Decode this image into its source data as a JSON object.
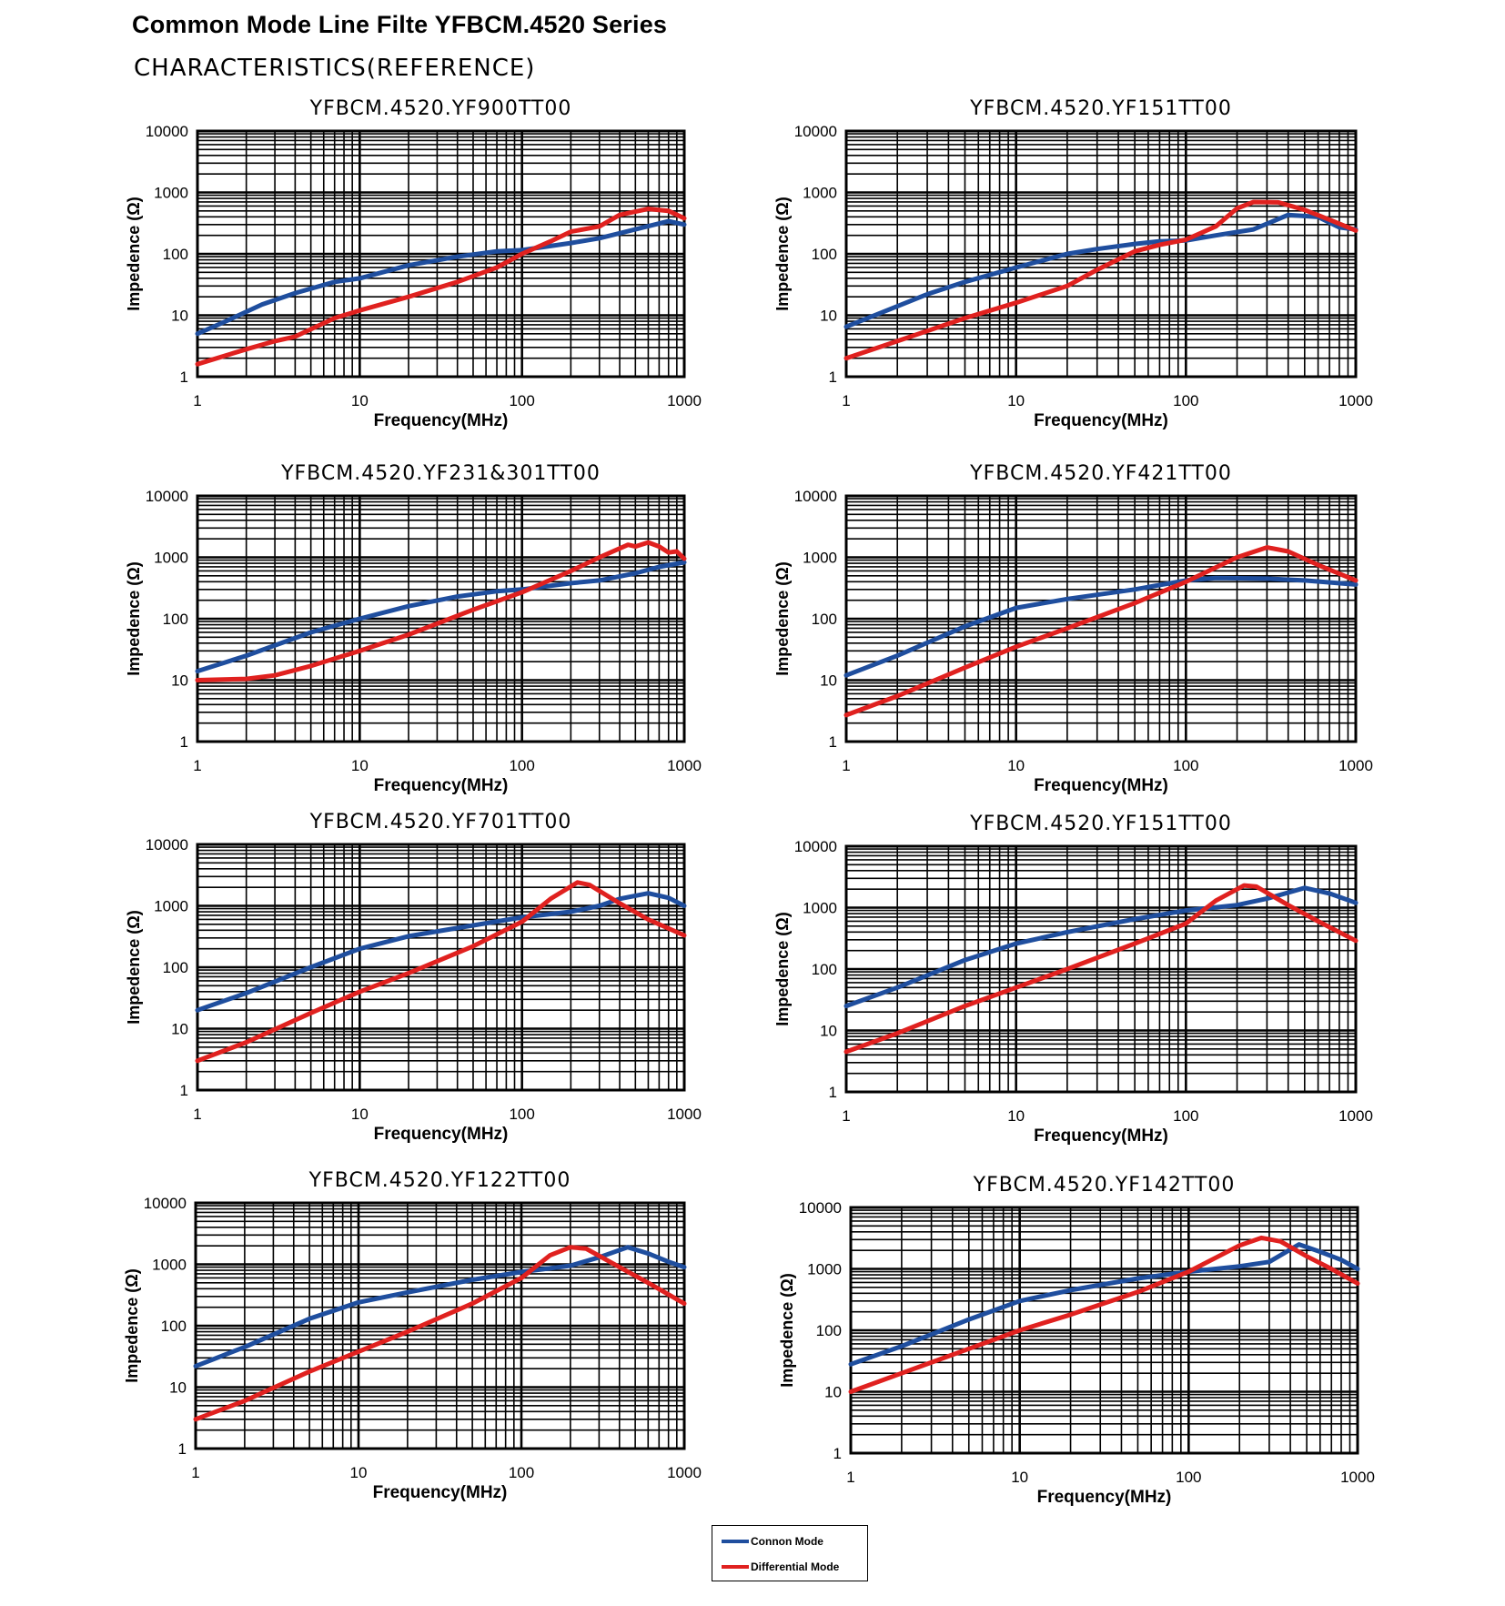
{
  "title": "Common Mode Line Filte YFBCM.4520 Series",
  "subtitle": "CHARACTERISTICS(REFERENCE)",
  "colors": {
    "common_mode": "#1f4e9e",
    "differential_mode": "#e0211f",
    "grid": "#000000"
  },
  "legend": {
    "items": [
      {
        "label": "Connon Mode",
        "color": "#1f4e9e"
      },
      {
        "label": "Differential Mode",
        "color": "#e0211f"
      }
    ]
  },
  "chart_data": [
    {
      "type": "line",
      "title": "YFBCM.4520.YF900TT00",
      "xlabel": "Frequency(MHz)",
      "ylabel": "Impedence (Ω)",
      "x_scale": "log",
      "y_scale": "log",
      "xlim": [
        1,
        1000
      ],
      "ylim": [
        1,
        10000
      ],
      "xticks": [
        "1",
        "10",
        "100",
        "1000"
      ],
      "yticks": [
        "1",
        "10",
        "100",
        "1000",
        "10000"
      ],
      "grid": true,
      "series": [
        {
          "x": [
            1,
            1.5,
            2.5,
            4,
            7,
            10,
            20,
            40,
            70,
            100,
            200,
            300,
            500,
            800,
            1000
          ],
          "y": [
            5,
            8,
            15,
            23,
            35,
            40,
            65,
            90,
            110,
            115,
            150,
            180,
            250,
            340,
            300
          ]
        },
        {
          "x": [
            1,
            2,
            3,
            4,
            7,
            10,
            20,
            40,
            70,
            100,
            150,
            200,
            300,
            400,
            600,
            800,
            1000
          ],
          "y": [
            1.6,
            2.8,
            3.8,
            4.5,
            9,
            12,
            20,
            35,
            60,
            100,
            160,
            230,
            280,
            430,
            540,
            500,
            380
          ]
        }
      ]
    },
    {
      "type": "line",
      "title": "YFBCM.4520.YF151TT00",
      "xlabel": "Frequency(MHz)",
      "ylabel": "Impedence (Ω)",
      "x_scale": "log",
      "y_scale": "log",
      "xlim": [
        1,
        1000
      ],
      "ylim": [
        1,
        10000
      ],
      "xticks": [
        "1",
        "10",
        "100",
        "1000"
      ],
      "yticks": [
        "1",
        "10",
        "100",
        "1000",
        "10000"
      ],
      "grid": true,
      "series": [
        {
          "x": [
            1,
            2,
            3,
            5,
            10,
            20,
            30,
            50,
            70,
            100,
            150,
            250,
            400,
            600,
            800,
            1000
          ],
          "y": [
            6.5,
            14,
            22,
            35,
            60,
            100,
            120,
            145,
            160,
            165,
            200,
            250,
            430,
            400,
            270,
            250
          ]
        },
        {
          "x": [
            1,
            2,
            5,
            10,
            20,
            30,
            50,
            70,
            100,
            150,
            200,
            250,
            350,
            500,
            700,
            1000
          ],
          "y": [
            2,
            3.8,
            9,
            16,
            30,
            55,
            110,
            140,
            170,
            280,
            550,
            700,
            690,
            520,
            360,
            240
          ]
        }
      ]
    },
    {
      "type": "line",
      "title": "YFBCM.4520.YF231&301TT00",
      "xlabel": "Frequency(MHz)",
      "ylabel": "Impedence (Ω)",
      "x_scale": "log",
      "y_scale": "log",
      "xlim": [
        1,
        1000
      ],
      "ylim": [
        1,
        10000
      ],
      "xticks": [
        "1",
        "10",
        "100",
        "1000"
      ],
      "yticks": [
        "1",
        "10",
        "100",
        "1000",
        "10000"
      ],
      "grid": true,
      "series": [
        {
          "x": [
            1,
            2,
            5,
            10,
            20,
            40,
            70,
            100,
            200,
            300,
            500,
            700,
            1000
          ],
          "y": [
            14,
            25,
            60,
            100,
            160,
            230,
            280,
            300,
            380,
            420,
            550,
            700,
            830
          ]
        },
        {
          "x": [
            1,
            2,
            3,
            5,
            10,
            20,
            50,
            100,
            200,
            300,
            450,
            500,
            600,
            700,
            800,
            900,
            1000
          ],
          "y": [
            10,
            10.5,
            12,
            17,
            30,
            55,
            140,
            270,
            600,
            1000,
            1600,
            1500,
            1750,
            1500,
            1200,
            1250,
            950
          ]
        }
      ]
    },
    {
      "type": "line",
      "title": "YFBCM.4520.YF421TT00",
      "xlabel": "Frequency(MHz)",
      "ylabel": "Impedence (Ω)",
      "x_scale": "log",
      "y_scale": "log",
      "xlim": [
        1,
        1000
      ],
      "ylim": [
        1,
        10000
      ],
      "xticks": [
        "1",
        "10",
        "100",
        "1000"
      ],
      "yticks": [
        "1",
        "10",
        "100",
        "1000",
        "10000"
      ],
      "grid": true,
      "series": [
        {
          "x": [
            1,
            2,
            5,
            10,
            20,
            50,
            100,
            150,
            300,
            500,
            1000
          ],
          "y": [
            12,
            25,
            75,
            150,
            210,
            300,
            420,
            460,
            450,
            420,
            360
          ]
        },
        {
          "x": [
            1,
            2,
            5,
            10,
            20,
            50,
            100,
            200,
            300,
            400,
            600,
            1000
          ],
          "y": [
            2.7,
            5.5,
            16,
            35,
            70,
            180,
            400,
            1000,
            1450,
            1250,
            750,
            420
          ]
        }
      ]
    },
    {
      "type": "line",
      "title": "YFBCM.4520.YF701TT00",
      "xlabel": "Frequency(MHz)",
      "ylabel": "Impedence (Ω)",
      "x_scale": "log",
      "y_scale": "log",
      "xlim": [
        1,
        1000
      ],
      "ylim": [
        1,
        10000
      ],
      "xticks": [
        "1",
        "10",
        "100",
        "1000"
      ],
      "yticks": [
        "1",
        "10",
        "100",
        "1000",
        "10000"
      ],
      "grid": true,
      "series": [
        {
          "x": [
            1,
            2,
            5,
            10,
            20,
            50,
            100,
            200,
            300,
            400,
            600,
            800,
            1000
          ],
          "y": [
            20,
            38,
            100,
            200,
            320,
            480,
            650,
            800,
            1000,
            1300,
            1600,
            1350,
            1000
          ]
        },
        {
          "x": [
            1,
            2,
            5,
            10,
            20,
            50,
            100,
            150,
            220,
            260,
            400,
            600,
            1000
          ],
          "y": [
            3,
            6,
            18,
            40,
            80,
            220,
            550,
            1300,
            2400,
            2200,
            1100,
            600,
            330
          ]
        }
      ]
    },
    {
      "type": "line",
      "title": "YFBCM.4520.YF151TT00",
      "xlabel": "Frequency(MHz)",
      "ylabel": "Impedence (Ω)",
      "x_scale": "log",
      "y_scale": "log",
      "xlim": [
        1,
        1000
      ],
      "ylim": [
        1,
        10000
      ],
      "xticks": [
        "1",
        "10",
        "100",
        "1000"
      ],
      "yticks": [
        "1",
        "10",
        "100",
        "1000",
        "10000"
      ],
      "grid": true,
      "series": [
        {
          "x": [
            1,
            2,
            5,
            10,
            20,
            50,
            100,
            200,
            300,
            500,
            700,
            1000
          ],
          "y": [
            25,
            50,
            140,
            260,
            400,
            650,
            900,
            1100,
            1400,
            2100,
            1700,
            1200
          ]
        },
        {
          "x": [
            1,
            2,
            5,
            10,
            20,
            50,
            100,
            150,
            220,
            260,
            400,
            600,
            1000
          ],
          "y": [
            4.5,
            9,
            25,
            50,
            100,
            260,
            550,
            1300,
            2300,
            2200,
            1100,
            600,
            290
          ]
        }
      ]
    },
    {
      "type": "line",
      "title": "YFBCM.4520.YF122TT00",
      "xlabel": "Frequency(MHz)",
      "ylabel": "Impedence (Ω)",
      "x_scale": "log",
      "y_scale": "log",
      "xlim": [
        1,
        1000
      ],
      "ylim": [
        1,
        10000
      ],
      "xticks": [
        "1",
        "10",
        "100",
        "1000"
      ],
      "yticks": [
        "1",
        "10",
        "100",
        "1000",
        "10000"
      ],
      "grid": true,
      "series": [
        {
          "x": [
            1,
            2,
            5,
            10,
            20,
            50,
            100,
            200,
            300,
            450,
            600,
            800,
            1000
          ],
          "y": [
            22,
            45,
            130,
            240,
            350,
            560,
            750,
            950,
            1300,
            1900,
            1500,
            1100,
            900
          ]
        },
        {
          "x": [
            1,
            2,
            5,
            10,
            20,
            50,
            100,
            150,
            200,
            250,
            400,
            600,
            1000
          ],
          "y": [
            3,
            6,
            18,
            38,
            80,
            230,
            600,
            1400,
            1900,
            1800,
            900,
            500,
            230
          ]
        }
      ]
    },
    {
      "type": "line",
      "title": "YFBCM.4520.YF142TT00",
      "xlabel": "Frequency(MHz)",
      "ylabel": "Impedence (Ω)",
      "x_scale": "log",
      "y_scale": "log",
      "xlim": [
        1,
        1000
      ],
      "ylim": [
        1,
        10000
      ],
      "xticks": [
        "1",
        "10",
        "100",
        "1000"
      ],
      "yticks": [
        "1",
        "10",
        "100",
        "1000",
        "10000"
      ],
      "grid": true,
      "series": [
        {
          "x": [
            1,
            2,
            5,
            10,
            20,
            50,
            100,
            200,
            300,
            450,
            600,
            800,
            1000
          ],
          "y": [
            28,
            55,
            150,
            300,
            450,
            700,
            900,
            1100,
            1300,
            2500,
            1900,
            1400,
            1000
          ]
        },
        {
          "x": [
            1,
            2,
            5,
            10,
            20,
            50,
            100,
            200,
            270,
            350,
            500,
            700,
            1000
          ],
          "y": [
            10,
            20,
            50,
            100,
            180,
            420,
            900,
            2400,
            3200,
            2800,
            1600,
            1000,
            580
          ]
        }
      ]
    }
  ]
}
